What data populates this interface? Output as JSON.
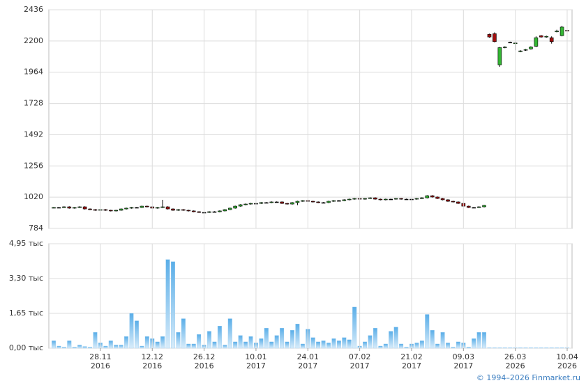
{
  "chart_data": [
    {
      "type": "candlestick",
      "open": [
        940,
        942,
        942,
        947,
        937,
        942,
        947,
        931,
        926,
        921,
        926,
        921,
        916,
        921,
        931,
        937,
        942,
        942,
        952,
        947,
        937,
        942,
        947,
        931,
        921,
        926,
        921,
        916,
        910,
        905,
        905,
        910,
        910,
        916,
        926,
        937,
        952,
        963,
        968,
        973,
        973,
        979,
        979,
        984,
        984,
        973,
        968,
        979,
        989,
        994,
        989,
        984,
        979,
        979,
        989,
        994,
        994,
        1000,
        1005,
        1010,
        1005,
        1010,
        1015,
        1005,
        1000,
        1005,
        1005,
        1010,
        1005,
        1005,
        1005,
        1010,
        1015,
        1031,
        1021,
        1010,
        1000,
        989,
        984,
        973,
        952,
        942,
        942,
        947,
        2250,
        2255,
        2020,
        2150,
        2190,
        2180,
        2120,
        2130,
        2140,
        2160,
        2240,
        2230,
        2225,
        2270,
        2240,
        2280
      ],
      "high": [
        946,
        946,
        951,
        951,
        946,
        951,
        951,
        935,
        930,
        930,
        930,
        925,
        925,
        935,
        941,
        946,
        946,
        956,
        956,
        951,
        946,
        1000,
        951,
        935,
        930,
        930,
        925,
        920,
        914,
        909,
        914,
        914,
        920,
        930,
        941,
        956,
        967,
        972,
        977,
        977,
        983,
        983,
        988,
        988,
        988,
        977,
        983,
        993,
        998,
        998,
        993,
        988,
        983,
        993,
        998,
        998,
        1004,
        1009,
        1014,
        1014,
        1014,
        1019,
        1019,
        1009,
        1009,
        1009,
        1014,
        1014,
        1009,
        1009,
        1014,
        1019,
        1035,
        1035,
        1025,
        1014,
        1004,
        993,
        988,
        977,
        956,
        946,
        951,
        962,
        2255,
        2265,
        2155,
        2160,
        2195,
        2195,
        2130,
        2140,
        2160,
        2235,
        2245,
        2240,
        2235,
        2285,
        2315,
        2290
      ],
      "low": [
        936,
        938,
        938,
        933,
        933,
        938,
        927,
        922,
        917,
        917,
        917,
        912,
        912,
        917,
        927,
        933,
        938,
        938,
        943,
        933,
        933,
        938,
        927,
        917,
        917,
        917,
        912,
        906,
        901,
        901,
        901,
        906,
        906,
        912,
        922,
        933,
        948,
        959,
        964,
        969,
        969,
        975,
        975,
        980,
        969,
        964,
        964,
        960,
        985,
        985,
        980,
        975,
        975,
        975,
        985,
        990,
        990,
        996,
        1001,
        1001,
        1001,
        1006,
        1001,
        996,
        996,
        1001,
        1001,
        1001,
        1001,
        1001,
        1001,
        1006,
        1011,
        1017,
        1006,
        996,
        985,
        980,
        969,
        948,
        938,
        938,
        938,
        943,
        2225,
        2190,
        2005,
        2145,
        2188,
        2130,
        2115,
        2125,
        2135,
        2155,
        2225,
        2225,
        2180,
        2265,
        2235,
        2270
      ],
      "close": [
        942,
        942,
        947,
        937,
        942,
        947,
        931,
        926,
        921,
        926,
        921,
        916,
        921,
        931,
        937,
        942,
        942,
        952,
        947,
        937,
        942,
        947,
        931,
        921,
        926,
        921,
        916,
        910,
        905,
        905,
        910,
        910,
        916,
        926,
        937,
        952,
        963,
        968,
        973,
        973,
        979,
        979,
        984,
        984,
        973,
        968,
        979,
        989,
        994,
        989,
        984,
        979,
        979,
        989,
        994,
        994,
        1000,
        1005,
        1010,
        1005,
        1010,
        1015,
        1005,
        1000,
        1005,
        1005,
        1010,
        1005,
        1005,
        1005,
        1010,
        1015,
        1031,
        1021,
        1010,
        1000,
        989,
        984,
        973,
        952,
        942,
        942,
        947,
        958,
        2230,
        2195,
        2150,
        2155,
        2190,
        2185,
        2125,
        2135,
        2155,
        2225,
        2230,
        2235,
        2195,
        2275,
        2305,
        2275
      ],
      "up_color": "#33b533",
      "down_color": "#a01010",
      "doji_color": "#000000",
      "ylim": [
        784,
        2436
      ],
      "yticks": [
        784,
        1020,
        1256,
        1492,
        1728,
        1964,
        2200,
        2436
      ],
      "grid": true
    },
    {
      "type": "bar",
      "categories": [
        null,
        null,
        null,
        null,
        null,
        null,
        null,
        null,
        null,
        "28.11",
        null,
        null,
        null,
        null,
        null,
        null,
        null,
        null,
        null,
        "12.12",
        null,
        null,
        null,
        null,
        null,
        null,
        null,
        null,
        null,
        "26.12",
        null,
        null,
        null,
        null,
        null,
        null,
        null,
        null,
        null,
        "10.01",
        null,
        null,
        null,
        null,
        null,
        null,
        null,
        null,
        null,
        "24.01",
        null,
        null,
        null,
        null,
        null,
        null,
        null,
        null,
        null,
        "07.02",
        null,
        null,
        null,
        null,
        null,
        null,
        null,
        null,
        null,
        "21.02",
        null,
        null,
        null,
        null,
        null,
        null,
        null,
        null,
        null,
        "09.03",
        null,
        null,
        null,
        null,
        null,
        null,
        null,
        null,
        null,
        "26.03",
        null,
        null,
        null,
        null,
        null,
        null,
        null,
        null,
        null,
        "10.04"
      ],
      "category_years": [
        null,
        null,
        null,
        null,
        null,
        null,
        null,
        null,
        null,
        "2016",
        null,
        null,
        null,
        null,
        null,
        null,
        null,
        null,
        null,
        "2016",
        null,
        null,
        null,
        null,
        null,
        null,
        null,
        null,
        null,
        "2016",
        null,
        null,
        null,
        null,
        null,
        null,
        null,
        null,
        null,
        "2017",
        null,
        null,
        null,
        null,
        null,
        null,
        null,
        null,
        null,
        "2017",
        null,
        null,
        null,
        null,
        null,
        null,
        null,
        null,
        null,
        "2017",
        null,
        null,
        null,
        null,
        null,
        null,
        null,
        null,
        null,
        "2017",
        null,
        null,
        null,
        null,
        null,
        null,
        null,
        null,
        null,
        "2017",
        null,
        null,
        null,
        null,
        null,
        null,
        null,
        null,
        null,
        "2026",
        null,
        null,
        null,
        null,
        null,
        null,
        null,
        null,
        null,
        "2026"
      ],
      "values": [
        0.35,
        0.1,
        0.05,
        0.35,
        0.05,
        0.15,
        0.08,
        0.05,
        0.75,
        0.25,
        0.1,
        0.35,
        0.15,
        0.15,
        0.55,
        1.65,
        1.3,
        0.1,
        0.55,
        0.45,
        0.3,
        0.55,
        4.2,
        4.1,
        0.75,
        1.4,
        0.2,
        0.2,
        0.65,
        0.15,
        0.8,
        0.3,
        1.05,
        0.15,
        1.4,
        0.3,
        0.6,
        0.3,
        0.55,
        0.25,
        0.45,
        0.95,
        0.3,
        0.6,
        0.95,
        0.3,
        0.85,
        1.15,
        0.2,
        0.9,
        0.5,
        0.3,
        0.35,
        0.25,
        0.45,
        0.35,
        0.5,
        0.4,
        1.95,
        0.1,
        0.3,
        0.6,
        0.95,
        0.1,
        0.2,
        0.8,
        1.0,
        0.2,
        0.05,
        0.2,
        0.25,
        0.35,
        1.6,
        0.85,
        0.2,
        0.75,
        0.25,
        0.05,
        0.3,
        0.25,
        0.05,
        0.45,
        0.75,
        0.75,
        0.02,
        0.02,
        0.02,
        0.02,
        0.02,
        0.02,
        0.02,
        0.02,
        0.02,
        0.02,
        0.02,
        0.02,
        0.02,
        0.02,
        0.02,
        0.02
      ],
      "color": "#8cc6ef",
      "ylim": [
        0,
        4.95
      ],
      "yticks": [
        {
          "value": 0,
          "label": "0,00 тыс"
        },
        {
          "value": 1.65,
          "label": "1,65 тыс"
        },
        {
          "value": 3.3,
          "label": "3,30 тыс"
        },
        {
          "value": 4.95,
          "label": "4,95 тыс"
        }
      ],
      "grid": true
    }
  ],
  "footer": "© 1994–2026 Finmarket.ru"
}
